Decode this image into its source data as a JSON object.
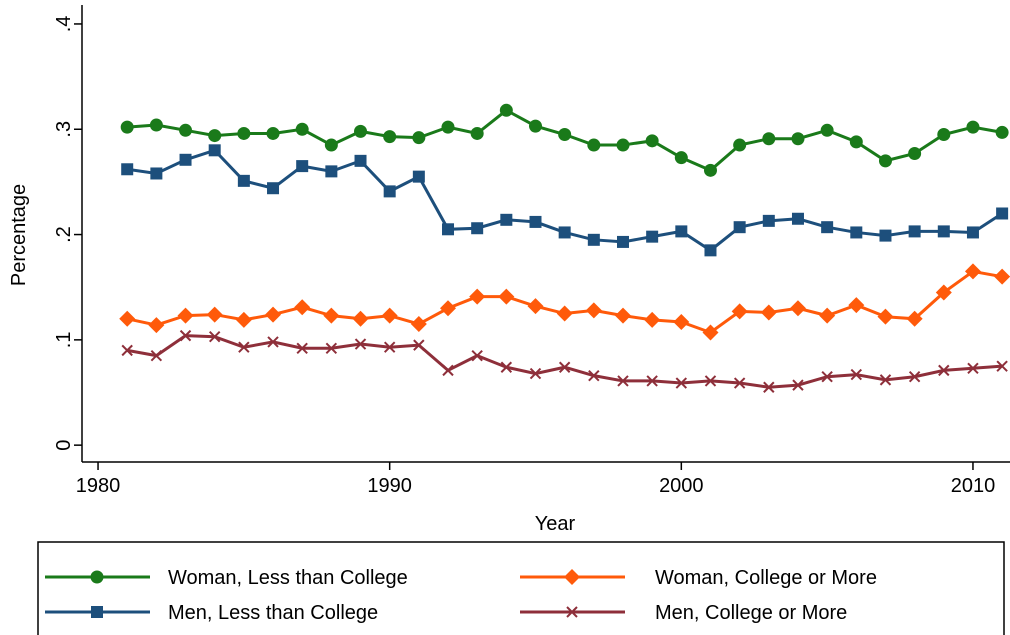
{
  "chart_data": {
    "type": "line",
    "x_label": "Year",
    "y_label": "Percentage",
    "x": [
      1981,
      1982,
      1983,
      1984,
      1985,
      1986,
      1987,
      1988,
      1989,
      1990,
      1991,
      1992,
      1993,
      1994,
      1995,
      1996,
      1997,
      1998,
      1999,
      2000,
      2001,
      2002,
      2003,
      2004,
      2005,
      2006,
      2007,
      2008,
      2009,
      2010,
      2011
    ],
    "xlim": [
      1979.45,
      2011.27
    ],
    "xticks": [
      1980,
      1990,
      2000,
      2010
    ],
    "ylim": [
      -0.016,
      0.418
    ],
    "yticks": [
      0,
      {
        "value": 0.1,
        "label": ".1"
      },
      {
        "value": 0.2,
        "label": ".2"
      },
      {
        "value": 0.3,
        "label": ".3"
      },
      {
        "value": 0.4,
        "label": ".4"
      }
    ],
    "legend": "bottom",
    "series": [
      {
        "name": "Woman, Less than College",
        "color": "#1a7a1a",
        "marker": "circle",
        "values": [
          0.302,
          0.304,
          0.299,
          0.294,
          0.296,
          0.296,
          0.3,
          0.285,
          0.298,
          0.293,
          0.292,
          0.302,
          0.296,
          0.318,
          0.303,
          0.295,
          0.285,
          0.285,
          0.289,
          0.273,
          0.261,
          0.285,
          0.291,
          0.291,
          0.299,
          0.288,
          0.27,
          0.277,
          0.295,
          0.302,
          0.297
        ]
      },
      {
        "name": "Woman, College or More",
        "color": "#ff5a0a",
        "marker": "diamond",
        "values": [
          0.12,
          0.114,
          0.123,
          0.124,
          0.119,
          0.124,
          0.131,
          0.123,
          0.12,
          0.123,
          0.115,
          0.13,
          0.141,
          0.141,
          0.132,
          0.125,
          0.128,
          0.123,
          0.119,
          0.117,
          0.107,
          0.127,
          0.126,
          0.13,
          0.123,
          0.133,
          0.122,
          0.12,
          0.145,
          0.165,
          0.16
        ]
      },
      {
        "name": "Men, Less than College",
        "color": "#1d4f7c",
        "marker": "square",
        "values": [
          0.262,
          0.258,
          0.271,
          0.28,
          0.251,
          0.244,
          0.265,
          0.26,
          0.27,
          0.241,
          0.255,
          0.205,
          0.206,
          0.214,
          0.212,
          0.202,
          0.195,
          0.193,
          0.198,
          0.203,
          0.185,
          0.207,
          0.213,
          0.215,
          0.207,
          0.202,
          0.199,
          0.203,
          0.203,
          0.202,
          0.22
        ]
      },
      {
        "name": "Men, College or More",
        "color": "#8e2f3a",
        "marker": "x",
        "values": [
          0.09,
          0.085,
          0.104,
          0.103,
          0.093,
          0.098,
          0.092,
          0.092,
          0.096,
          0.093,
          0.095,
          0.071,
          0.085,
          0.074,
          0.068,
          0.074,
          0.066,
          0.061,
          0.061,
          0.059,
          0.061,
          0.059,
          0.055,
          0.057,
          0.065,
          0.067,
          0.062,
          0.065,
          0.071,
          0.073,
          0.075
        ]
      }
    ]
  }
}
